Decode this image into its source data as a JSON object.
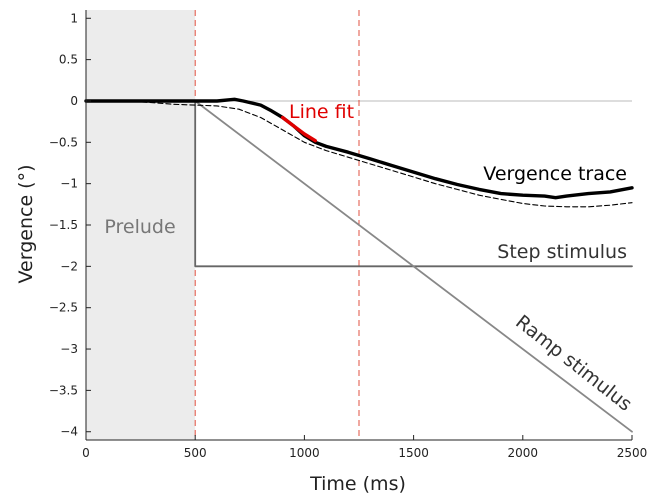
{
  "chart_data": {
    "type": "line",
    "xlabel": "Time (ms)",
    "ylabel": "Vergence (°)",
    "xlim": [
      0,
      2500
    ],
    "ylim": [
      -4.1,
      1.1
    ],
    "xticks": [
      0,
      500,
      1000,
      1500,
      2000,
      2500
    ],
    "yticks": [
      1,
      0.5,
      0,
      -0.5,
      -1,
      -1.5,
      -2,
      -2.5,
      -3,
      -3.5,
      -4
    ],
    "ytick_labels": [
      "1",
      "0.5",
      "0",
      "−0.5",
      "−1",
      "−1.5",
      "−2",
      "−2.5",
      "−3",
      "−3.5",
      "−4"
    ],
    "prelude_region": [
      0,
      500
    ],
    "markers_x": [
      500,
      1250
    ],
    "series": [
      {
        "name": "Vergence trace",
        "color": "#000000",
        "style": "solid-thick",
        "x": [
          0,
          200,
          300,
          400,
          500,
          600,
          680,
          720,
          800,
          850,
          900,
          950,
          1000,
          1050,
          1100,
          1200,
          1300,
          1400,
          1500,
          1600,
          1700,
          1800,
          1900,
          2000,
          2100,
          2150,
          2200,
          2300,
          2400,
          2500
        ],
        "y": [
          0,
          0,
          0,
          0,
          0,
          0,
          0.02,
          0,
          -0.05,
          -0.12,
          -0.2,
          -0.3,
          -0.42,
          -0.5,
          -0.55,
          -0.62,
          -0.7,
          -0.78,
          -0.86,
          -0.94,
          -1.01,
          -1.07,
          -1.12,
          -1.14,
          -1.15,
          -1.17,
          -1.15,
          -1.12,
          -1.1,
          -1.05
        ]
      },
      {
        "name": "",
        "color": "#000000",
        "style": "dashed",
        "x": [
          0,
          200,
          300,
          400,
          500,
          600,
          700,
          800,
          900,
          1000,
          1100,
          1200,
          1300,
          1400,
          1500,
          1600,
          1700,
          1800,
          1900,
          2000,
          2100,
          2200,
          2300,
          2400,
          2500
        ],
        "y": [
          0,
          0,
          -0.02,
          -0.04,
          -0.05,
          -0.06,
          -0.1,
          -0.2,
          -0.35,
          -0.5,
          -0.6,
          -0.68,
          -0.76,
          -0.84,
          -0.92,
          -1.0,
          -1.07,
          -1.14,
          -1.19,
          -1.24,
          -1.27,
          -1.28,
          -1.28,
          -1.26,
          -1.23
        ]
      },
      {
        "name": "Step stimulus",
        "color": "#666666",
        "style": "solid",
        "x": [
          0,
          500,
          500,
          2500
        ],
        "y": [
          0,
          0,
          -2,
          -2
        ]
      },
      {
        "name": "Ramp stimulus",
        "color": "#888888",
        "style": "solid",
        "x": [
          500,
          2500
        ],
        "y": [
          0,
          -4
        ]
      },
      {
        "name": "Line fit",
        "color": "#e00000",
        "style": "solid-thick",
        "x": [
          900,
          950,
          1000,
          1050
        ],
        "y": [
          -0.2,
          -0.3,
          -0.4,
          -0.48
        ]
      }
    ],
    "annotations": {
      "prelude": "Prelude",
      "line_fit": "Line fit",
      "vergence_trace": "Vergence trace",
      "step_stimulus": "Step stimulus",
      "ramp_stimulus": "Ramp stimulus"
    }
  }
}
